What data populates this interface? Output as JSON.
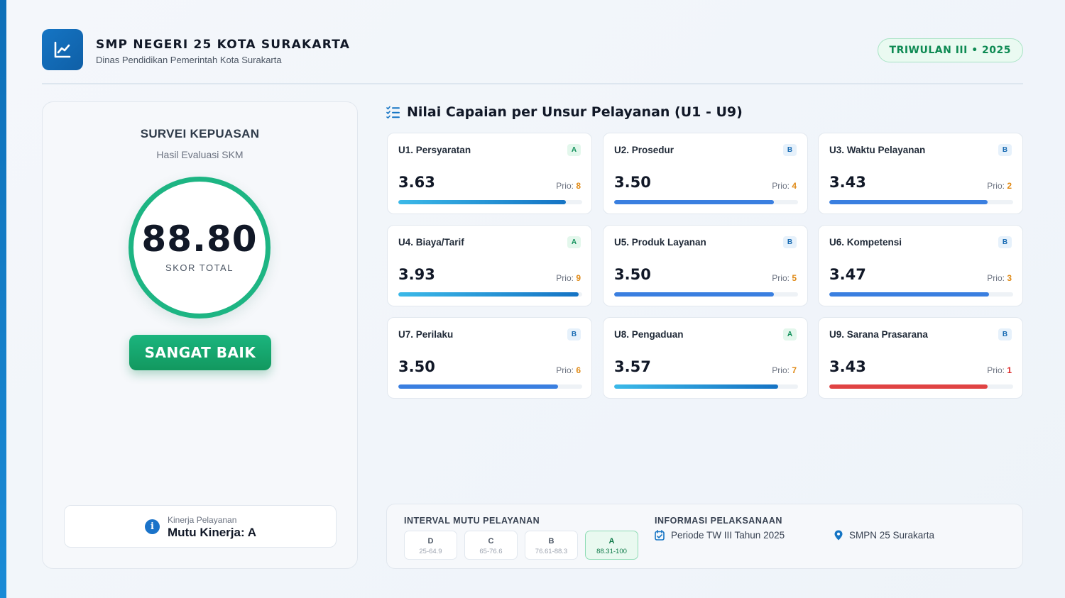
{
  "header": {
    "school_name": "SMP NEGERI 25 KOTA SURAKARTA",
    "subtitle": "Dinas Pendidikan Pemerintah Kota Surakarta",
    "period": "TRIWULAN III • 2025",
    "logo_icon": "line-chart-icon"
  },
  "summary": {
    "title": "SURVEI KEPUASAN",
    "subtitle": "Hasil Evaluasi SKM",
    "score": "88.80",
    "score_label": "SKOR TOTAL",
    "verdict": "SANGAT BAIK",
    "performance_label": "Kinerja Pelayanan",
    "performance_value": "Mutu Kinerja: A"
  },
  "section": {
    "title": "Nilai Capaian per Unsur Pelayanan (U1 - U9)"
  },
  "units": [
    {
      "name": "U1. Persyaratan",
      "grade": "A",
      "value": "3.63",
      "prio_label": "Prio:",
      "prio": "8",
      "fill_pct": 91,
      "style": "a"
    },
    {
      "name": "U2. Prosedur",
      "grade": "B",
      "value": "3.50",
      "prio_label": "Prio:",
      "prio": "4",
      "fill_pct": 87,
      "style": "b"
    },
    {
      "name": "U3. Waktu Pelayanan",
      "grade": "B",
      "value": "3.43",
      "prio_label": "Prio:",
      "prio": "2",
      "fill_pct": 86,
      "style": "b"
    },
    {
      "name": "U4. Biaya/Tarif",
      "grade": "A",
      "value": "3.93",
      "prio_label": "Prio:",
      "prio": "9",
      "fill_pct": 98,
      "style": "a"
    },
    {
      "name": "U5. Produk Layanan",
      "grade": "B",
      "value": "3.50",
      "prio_label": "Prio:",
      "prio": "5",
      "fill_pct": 87,
      "style": "b"
    },
    {
      "name": "U6. Kompetensi",
      "grade": "B",
      "value": "3.47",
      "prio_label": "Prio:",
      "prio": "3",
      "fill_pct": 87,
      "style": "b"
    },
    {
      "name": "U7. Perilaku",
      "grade": "B",
      "value": "3.50",
      "prio_label": "Prio:",
      "prio": "6",
      "fill_pct": 87,
      "style": "b"
    },
    {
      "name": "U8. Pengaduan",
      "grade": "A",
      "value": "3.57",
      "prio_label": "Prio:",
      "prio": "7",
      "fill_pct": 89,
      "style": "a"
    },
    {
      "name": "U9. Sarana Prasarana",
      "grade": "B",
      "value": "3.43",
      "prio_label": "Prio:",
      "prio": "1",
      "fill_pct": 86,
      "style": "r"
    }
  ],
  "interval": {
    "title": "INTERVAL MUTU PELAYANAN",
    "items": [
      {
        "grade": "D",
        "range": "25-64.9"
      },
      {
        "grade": "C",
        "range": "65-76.6"
      },
      {
        "grade": "B",
        "range": "76.61-88.3"
      },
      {
        "grade": "A",
        "range": "88.31-100"
      }
    ]
  },
  "info": {
    "title": "INFORMASI PELAKSANAAN",
    "period": "Periode TW III Tahun 2025",
    "location": "SMPN 25 Surakarta"
  },
  "colors": {
    "primary": "#1575c4",
    "success": "#1db583",
    "warning": "#e08a16",
    "danger": "#dc2626"
  }
}
